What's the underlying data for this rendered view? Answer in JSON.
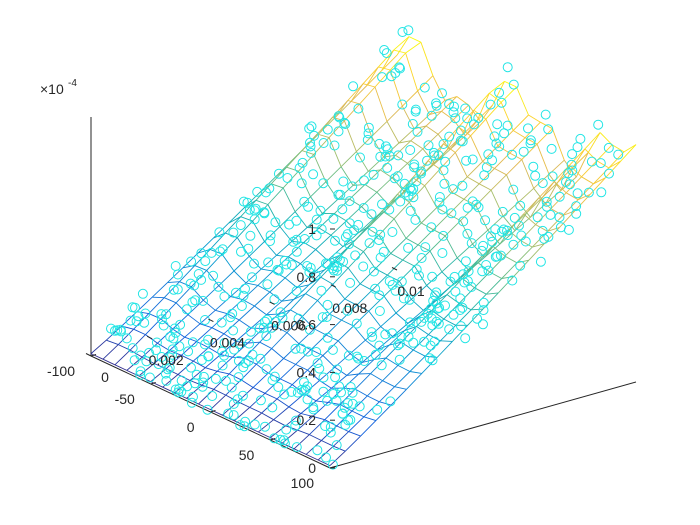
{
  "chart_data": {
    "type": "surface+scatter3d",
    "title": "",
    "xlabel": "",
    "ylabel": "",
    "zlabel": "",
    "xlim": [
      0,
      0.01
    ],
    "ylim": [
      -100,
      100
    ],
    "zlim": [
      0,
      1
    ],
    "z_exponent_label": "×10",
    "z_exponent_power": "-4",
    "x_ticks": [
      0,
      0.002,
      0.004,
      0.006,
      0.008,
      0.01
    ],
    "x_tick_labels": [
      "0",
      "0.002",
      "0.004",
      "0.006",
      "0.008",
      "0.01"
    ],
    "y_ticks": [
      -100,
      -50,
      0,
      50,
      100
    ],
    "y_tick_labels": [
      "-100",
      "-50",
      "0",
      "50",
      "100"
    ],
    "z_ticks": [
      0,
      0.2,
      0.4,
      0.6,
      0.8,
      1
    ],
    "z_tick_labels": [
      "0",
      "0.2",
      "0.4",
      "0.6",
      "0.8",
      "1"
    ],
    "grid": false,
    "colormap": "parula",
    "marker": "o",
    "marker_color": "#22e5e5",
    "mesh_grid": {
      "x": [
        0,
        0.0005,
        0.001,
        0.0015,
        0.002,
        0.0025,
        0.003,
        0.0035,
        0.004,
        0.0045,
        0.005,
        0.0055,
        0.006,
        0.0065,
        0.007,
        0.0075,
        0.008,
        0.0085,
        0.009,
        0.0095,
        0.01
      ],
      "y": [
        -100,
        -90,
        -80,
        -70,
        -60,
        -50,
        -40,
        -30,
        -20,
        -10,
        0,
        10,
        20,
        30,
        40,
        50,
        60,
        70,
        80,
        90,
        100
      ]
    },
    "description_free_values_note": ""
  }
}
